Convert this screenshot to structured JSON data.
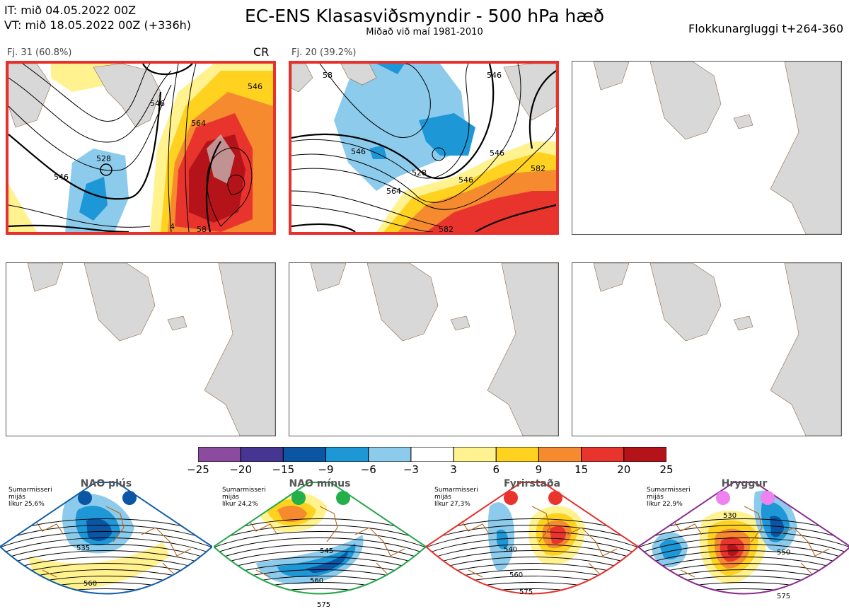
{
  "header": {
    "it_line": "IT: mið 04.05.2022 00Z",
    "vt_line": "VT: mið 18.05.2022 00Z  (+336h)",
    "title": "EC-ENS Klasasviðsmyndir - 500 hPa hæð",
    "subtitle": "Miðað við maí 1981-2010",
    "window": "Flokkunargluggi t+264-360"
  },
  "clusters": [
    {
      "label": "Fj. 31 (60.8%)",
      "tag": "CR",
      "contours": [
        "528",
        "546",
        "546",
        "564",
        "546",
        "58",
        "4"
      ]
    },
    {
      "label": "Fj. 20 (39.2%)",
      "tag": "",
      "contours": [
        "546",
        "528",
        "546",
        "564",
        "546",
        "582",
        "546",
        "582",
        "58"
      ]
    }
  ],
  "colorbar": {
    "ticks": [
      "−25",
      "−20",
      "−15",
      "−9",
      "−6",
      "−3",
      "3",
      "6",
      "9",
      "15",
      "20",
      "25"
    ],
    "colors": [
      "#8b4b9e",
      "#463592",
      "#0a56a4",
      "#1e97d6",
      "#8ccbeb",
      "#ffffff",
      "#fff28f",
      "#ffd21f",
      "#f58a2f",
      "#e9342d",
      "#b41419"
    ]
  },
  "regimes": [
    {
      "title": "NAO plús",
      "note": [
        "Sumarmisseri",
        "mijás",
        "líkur 25,6%"
      ],
      "dot_color": "#0a56a4",
      "border": "#1460a8",
      "contours": [
        "535",
        "560"
      ]
    },
    {
      "title": "NAO mínus",
      "note": [
        "Sumarmisseri",
        "mijás",
        "líkur 24,2%"
      ],
      "dot_color": "#23b04a",
      "border": "#23a849",
      "contours": [
        "545",
        "560",
        "575"
      ]
    },
    {
      "title": "Fyrirstaða",
      "note": [
        "Sumarmisseri",
        "mijás",
        "líkur 27,3%"
      ],
      "dot_color": "#e9342d",
      "border": "#e5322d",
      "contours": [
        "540",
        "560",
        "575"
      ]
    },
    {
      "title": "Hryggur",
      "note": [
        "Sumarmisseri",
        "mijás",
        "líkur 22,9%"
      ],
      "dot_color": "#ee82ee",
      "border": "#8b2c8f",
      "contours": [
        "530",
        "550",
        "575"
      ]
    }
  ]
}
